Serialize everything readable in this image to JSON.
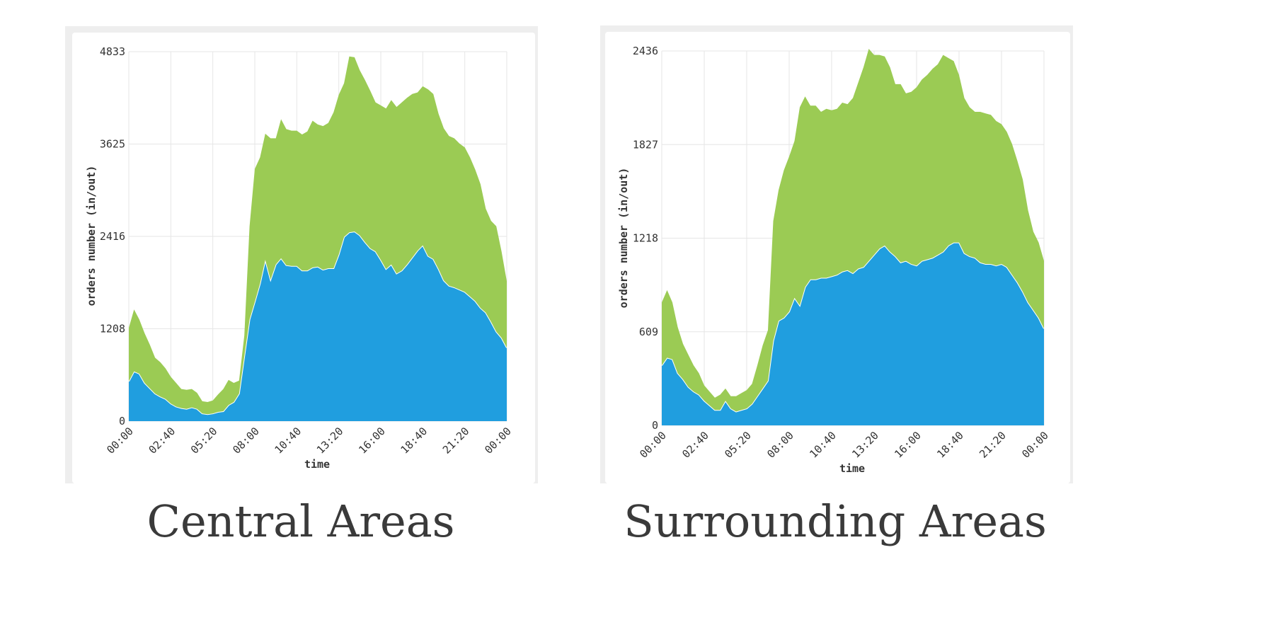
{
  "chart_data": [
    {
      "type": "area",
      "stacked": true,
      "caption": "Central Areas",
      "xlabel": "time",
      "ylabel": "orders number (in/out)",
      "ylim": [
        0,
        4833
      ],
      "yticks": [
        "0",
        "1208",
        "2416",
        "3625",
        "4833"
      ],
      "xticks": [
        "00:00",
        "02:40",
        "05:20",
        "08:00",
        "10:40",
        "13:20",
        "16:00",
        "18:40",
        "21:20",
        "00:00"
      ],
      "grid": true,
      "x_start_minutes": 0,
      "x_step_minutes": 20,
      "series": [
        {
          "color": "#209edf",
          "values": [
            520,
            650,
            620,
            500,
            430,
            360,
            320,
            290,
            230,
            190,
            170,
            160,
            180,
            160,
            100,
            90,
            100,
            120,
            130,
            210,
            250,
            360,
            850,
            1330,
            1560,
            1800,
            2110,
            1850,
            2050,
            2130,
            2040,
            2030,
            2030,
            1970,
            1970,
            2010,
            2020,
            1980,
            2000,
            2000,
            2180,
            2410,
            2470,
            2480,
            2430,
            2340,
            2260,
            2220,
            2110,
            1990,
            2050,
            1930,
            1970,
            2050,
            2140,
            2230,
            2300,
            2160,
            2120,
            1990,
            1840,
            1770,
            1750,
            1720,
            1690,
            1630,
            1570,
            1480,
            1420,
            1300,
            1170,
            1090,
            960
          ]
        },
        {
          "color": "#9bcb54",
          "values": [
            700,
            810,
            710,
            650,
            570,
            470,
            450,
            400,
            350,
            310,
            250,
            250,
            240,
            210,
            160,
            160,
            170,
            230,
            290,
            330,
            250,
            170,
            270,
            1220,
            1740,
            1650,
            1650,
            1850,
            1650,
            1820,
            1780,
            1770,
            1770,
            1780,
            1820,
            1920,
            1860,
            1880,
            1900,
            2040,
            2090,
            2010,
            2300,
            2280,
            2160,
            2120,
            2060,
            1950,
            2020,
            2100,
            2150,
            2180,
            2200,
            2180,
            2140,
            2070,
            2080,
            2180,
            2160,
            2030,
            1990,
            1960,
            1950,
            1910,
            1890,
            1820,
            1720,
            1620,
            1360,
            1320,
            1380,
            1130,
            870
          ]
        }
      ]
    },
    {
      "type": "area",
      "stacked": true,
      "caption": "Surrounding Areas",
      "xlabel": "time",
      "ylabel": "orders number (in/out)",
      "ylim": [
        0,
        2436
      ],
      "yticks": [
        "0",
        "609",
        "1218",
        "1827",
        "2436"
      ],
      "xticks": [
        "00:00",
        "02:40",
        "05:20",
        "08:00",
        "10:40",
        "13:20",
        "16:00",
        "18:40",
        "21:20",
        "00:00"
      ],
      "grid": true,
      "x_start_minutes": 0,
      "x_step_minutes": 20,
      "series": [
        {
          "color": "#209edf",
          "values": [
            390,
            440,
            430,
            340,
            300,
            250,
            220,
            200,
            160,
            130,
            100,
            100,
            160,
            110,
            90,
            100,
            110,
            140,
            190,
            240,
            290,
            550,
            680,
            700,
            740,
            830,
            780,
            900,
            950,
            950,
            960,
            960,
            970,
            980,
            1000,
            1010,
            990,
            1020,
            1030,
            1070,
            1110,
            1150,
            1170,
            1130,
            1100,
            1060,
            1070,
            1050,
            1040,
            1070,
            1080,
            1090,
            1110,
            1130,
            1170,
            1190,
            1190,
            1120,
            1100,
            1090,
            1060,
            1050,
            1050,
            1040,
            1050,
            1030,
            980,
            930,
            870,
            800,
            750,
            700,
            630
          ]
        },
        {
          "color": "#9bcb54",
          "values": [
            410,
            440,
            370,
            300,
            230,
            210,
            170,
            140,
            100,
            90,
            80,
            100,
            80,
            80,
            100,
            110,
            120,
            130,
            200,
            280,
            330,
            780,
            850,
            960,
            1010,
            1020,
            1290,
            1240,
            1130,
            1130,
            1080,
            1100,
            1080,
            1080,
            1100,
            1080,
            1140,
            1210,
            1300,
            1380,
            1300,
            1260,
            1230,
            1200,
            1120,
            1160,
            1090,
            1120,
            1160,
            1180,
            1200,
            1230,
            1240,
            1280,
            1220,
            1180,
            1090,
            1010,
            970,
            950,
            980,
            980,
            970,
            940,
            910,
            880,
            850,
            790,
            730,
            600,
            510,
            490,
            440
          ]
        }
      ]
    }
  ]
}
